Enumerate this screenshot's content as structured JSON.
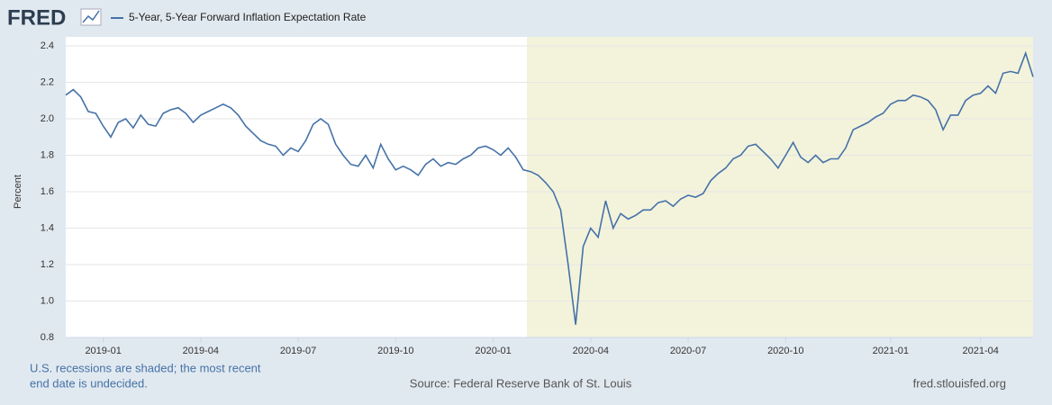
{
  "header": {
    "logo": "FRED"
  },
  "chart_data": {
    "type": "line",
    "y_label": "Percent",
    "x": [
      null,
      null,
      null,
      null,
      null,
      "2019-01",
      null,
      null,
      null,
      null,
      null,
      null,
      null,
      null,
      null,
      null,
      null,
      null,
      "2019-04",
      null,
      null,
      null,
      null,
      null,
      null,
      null,
      null,
      null,
      null,
      null,
      null,
      "2019-07",
      null,
      null,
      null,
      null,
      null,
      null,
      null,
      null,
      null,
      null,
      null,
      null,
      "2019-10",
      null,
      null,
      null,
      null,
      null,
      null,
      null,
      null,
      null,
      null,
      null,
      null,
      "2020-01",
      null,
      null,
      null,
      null,
      null,
      null,
      null,
      null,
      null,
      null,
      null,
      null,
      "2020-04",
      null,
      null,
      null,
      null,
      null,
      null,
      null,
      null,
      null,
      null,
      null,
      null,
      "2020-07",
      null,
      null,
      null,
      null,
      null,
      null,
      null,
      null,
      null,
      null,
      null,
      null,
      "2020-10",
      null,
      null,
      null,
      null,
      null,
      null,
      null,
      null,
      null,
      null,
      null,
      null,
      null,
      "2021-01",
      null,
      null,
      null,
      null,
      null,
      null,
      null,
      null,
      null,
      null,
      null,
      "2021-04",
      null,
      null,
      null,
      null,
      null,
      null,
      null
    ],
    "series": [
      {
        "name": "5-Year, 5-Year Forward Inflation Expectation Rate",
        "color": "#4572a7",
        "values": [
          2.13,
          2.16,
          2.12,
          2.04,
          2.03,
          1.96,
          1.9,
          1.98,
          2.0,
          1.95,
          2.02,
          1.97,
          1.96,
          2.03,
          2.05,
          2.06,
          2.03,
          1.98,
          2.02,
          2.04,
          2.06,
          2.08,
          2.06,
          2.02,
          1.96,
          1.92,
          1.88,
          1.86,
          1.85,
          1.8,
          1.84,
          1.82,
          1.88,
          1.97,
          2.0,
          1.97,
          1.86,
          1.8,
          1.75,
          1.74,
          1.8,
          1.73,
          1.86,
          1.78,
          1.72,
          1.74,
          1.72,
          1.69,
          1.75,
          1.78,
          1.74,
          1.76,
          1.75,
          1.78,
          1.8,
          1.84,
          1.85,
          1.83,
          1.8,
          1.84,
          1.79,
          1.72,
          1.71,
          1.69,
          1.65,
          1.6,
          1.5,
          1.2,
          0.87,
          1.3,
          1.4,
          1.35,
          1.55,
          1.4,
          1.48,
          1.45,
          1.47,
          1.5,
          1.5,
          1.54,
          1.55,
          1.52,
          1.56,
          1.58,
          1.57,
          1.59,
          1.66,
          1.7,
          1.73,
          1.78,
          1.8,
          1.85,
          1.86,
          1.82,
          1.78,
          1.73,
          1.8,
          1.87,
          1.79,
          1.76,
          1.8,
          1.76,
          1.78,
          1.78,
          1.84,
          1.94,
          1.96,
          1.98,
          2.01,
          2.03,
          2.08,
          2.1,
          2.1,
          2.13,
          2.12,
          2.1,
          2.05,
          1.94,
          2.02,
          2.02,
          2.1,
          2.13,
          2.14,
          2.18,
          2.14,
          2.25,
          2.26,
          2.25,
          2.36,
          2.23
        ]
      }
    ],
    "shaded_from": 62,
    "shade_color": "#f3f3dc",
    "ylim": [
      0.8,
      2.4
    ],
    "yticks": [
      0.8,
      {
        "value": 1,
        "label": "1.0"
      },
      1.2,
      1.4,
      1.6,
      1.8,
      {
        "value": 2,
        "label": "2.0"
      },
      2.2,
      2.4
    ],
    "grid": true
  },
  "footer": {
    "note": [
      "U.S. recessions are shaded; the most recent",
      "end date is undecided."
    ],
    "source": "Source: Federal Reserve Bank of St. Louis",
    "url": "fred.stlouisfed.org"
  }
}
